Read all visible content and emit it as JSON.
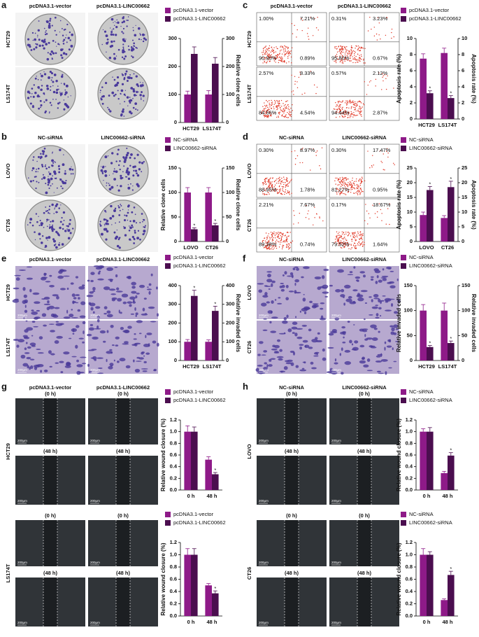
{
  "panels": [
    {
      "letter": "a",
      "columns": [
        "pcDNA3.1-vector",
        "pcDNA3.1-LINC00662"
      ],
      "rows": [
        "HCT29",
        "LS174T"
      ]
    },
    {
      "letter": "b",
      "columns": [
        "NC-siRNA",
        "LINC00662-siRNA"
      ],
      "rows": [
        "LOVO",
        "CT26"
      ]
    },
    {
      "letter": "c",
      "columns": [
        "pcDNA3.1-vector",
        "pcDNA3.1-LINC00662"
      ],
      "rows": [
        "HCT29",
        "LS174T"
      ],
      "quadrants": [
        [
          "1.00%",
          "7.21%",
          "90.90%",
          "0.89%"
        ],
        [
          "0.31%",
          "3.23%",
          "95.80%",
          "0.67%"
        ],
        [
          "2.57%",
          "8.33%",
          "84.56%",
          "4.54%"
        ],
        [
          "0.57%",
          "2.12%",
          "94.44%",
          "2.87%"
        ]
      ]
    },
    {
      "letter": "d",
      "columns": [
        "NC-siRNA",
        "LINC00662-siRNA"
      ],
      "rows": [
        "LOVO",
        "CT26"
      ],
      "quadrants": [
        [
          "0.30%",
          "8.97%",
          "88.95%",
          "1.78%"
        ],
        [
          "0.30%",
          "17.47%",
          "81.27%",
          "0.95%"
        ],
        [
          "2.21%",
          "7.67%",
          "89.38%",
          "0.74%"
        ],
        [
          "0.17%",
          "18.67%",
          "79.52%",
          "1.64%"
        ]
      ]
    },
    {
      "letter": "e",
      "columns": [
        "pcDNA3.1-vector",
        "pcDNA3.1-LINC00662"
      ],
      "rows": [
        "HCT29",
        "LS174T"
      ],
      "scale_bar": "200μm"
    },
    {
      "letter": "f",
      "columns": [
        "NC-siRNA",
        "LINC00662-siRNA"
      ],
      "rows": [
        "LOVO",
        "CT26"
      ],
      "scale_bar": "200μm"
    },
    {
      "letter": "g",
      "columns": [
        "pcDNA3.1-vector",
        "pcDNA3.1-LINC00662"
      ],
      "rows": [
        "HCT29",
        "LS174T"
      ],
      "times": [
        "(0 h)",
        "(48 h)"
      ],
      "scale_bar": "200μm"
    },
    {
      "letter": "h",
      "columns": [
        "NC-siRNA",
        "LINC00662-siRNA"
      ],
      "rows": [
        "LOVO",
        "CT26"
      ],
      "times": [
        "(0 h)",
        "(48 h)"
      ],
      "scale_bar": "200μm"
    }
  ],
  "chart_data": [
    {
      "type": "bar",
      "categories": [
        "HCT29",
        "LS174T"
      ],
      "y2label": "Relative clone cells",
      "ylim": [
        0,
        300
      ],
      "yticks": [
        0,
        100,
        200,
        300
      ],
      "y2lim": [
        0,
        300
      ],
      "y2ticks": [
        0,
        100,
        200,
        300
      ],
      "series": [
        {
          "name": "pcDNA3.1-vector",
          "color": "#8e1a88",
          "values": [
            100,
            100
          ],
          "errors": [
            12,
            14
          ]
        },
        {
          "name": "pcDNA3.1-LINC00662",
          "color": "#4b0e4f",
          "values": [
            245,
            210
          ],
          "errors": [
            25,
            22
          ]
        }
      ]
    },
    {
      "type": "bar",
      "categories": [
        "LOVO",
        "CT26"
      ],
      "ylabel": "Relative clone cells",
      "y2label": "Relative clone cells",
      "ylim": [
        0,
        150
      ],
      "yticks": [
        0,
        50,
        100,
        150
      ],
      "y2lim": [
        0,
        150
      ],
      "y2ticks": [
        0,
        50,
        100,
        150
      ],
      "series": [
        {
          "name": "NC-siRNA",
          "color": "#8e1a88",
          "values": [
            100,
            100
          ],
          "errors": [
            10,
            10
          ]
        },
        {
          "name": "LINC00662-siRNA",
          "color": "#4b0e4f",
          "values": [
            25,
            33
          ],
          "errors": [
            3,
            4
          ],
          "significance": [
            "*",
            "*"
          ]
        }
      ]
    },
    {
      "type": "bar",
      "categories": [
        "HCT29",
        "LS174T"
      ],
      "ylabel": "Apoptosis rate (%)",
      "y2label": "Apoptosis rate (%)",
      "ylim": [
        0,
        10
      ],
      "yticks": [
        0,
        2,
        4,
        6,
        8,
        10
      ],
      "y2lim": [
        0,
        10
      ],
      "y2ticks": [
        0,
        2,
        4,
        6,
        8,
        10
      ],
      "series": [
        {
          "name": "pcDNA3.1-vector",
          "color": "#8e1a88",
          "values": [
            7.5,
            8.2
          ],
          "errors": [
            0.6,
            0.6
          ]
        },
        {
          "name": "pcDNA3.1-LINC00662",
          "color": "#4b0e4f",
          "values": [
            3.2,
            2.6
          ],
          "errors": [
            0.3,
            0.3
          ],
          "significance": [
            "*",
            "*"
          ]
        }
      ]
    },
    {
      "type": "bar",
      "categories": [
        "LOVO",
        "CT26"
      ],
      "ylabel": "Apoptosis rate (%)",
      "y2label": "Apoptosis rate (%)",
      "ylim": [
        0,
        25
      ],
      "yticks": [
        0,
        5,
        10,
        15,
        20,
        25
      ],
      "y2lim": [
        0,
        25
      ],
      "y2ticks": [
        0,
        5,
        10,
        15,
        20,
        25
      ],
      "series": [
        {
          "name": "NC-siRNA",
          "color": "#8e1a88",
          "values": [
            9,
            8
          ],
          "errors": [
            1,
            0.8
          ]
        },
        {
          "name": "LINC00662-siRNA",
          "color": "#4b0e4f",
          "values": [
            17.5,
            18.5
          ],
          "errors": [
            1.2,
            2
          ],
          "significance": [
            "*",
            "*"
          ]
        }
      ]
    },
    {
      "type": "bar",
      "categories": [
        "HCT29",
        "LS174T"
      ],
      "y2label": "Relative invaded cells",
      "ylim": [
        0,
        400
      ],
      "yticks": [
        0,
        100,
        200,
        300,
        400
      ],
      "y2lim": [
        0,
        400
      ],
      "y2ticks": [
        0,
        100,
        200,
        300,
        400
      ],
      "series": [
        {
          "name": "pcDNA3.1-vector",
          "color": "#8e1a88",
          "values": [
            100,
            100
          ],
          "errors": [
            12,
            10
          ]
        },
        {
          "name": "pcDNA3.1-LINC00662",
          "color": "#4b0e4f",
          "values": [
            345,
            265
          ],
          "errors": [
            30,
            25
          ],
          "significance": [
            "*",
            "*"
          ]
        }
      ]
    },
    {
      "type": "bar",
      "categories": [
        "HCT29",
        "LS174T"
      ],
      "ylabel": "Relative invaded cells",
      "y2label": "Relative invaded cells",
      "ylim": [
        0,
        150
      ],
      "yticks": [
        0,
        50,
        100,
        150
      ],
      "y2lim": [
        0,
        150
      ],
      "y2ticks": [
        0,
        50,
        100,
        150
      ],
      "series": [
        {
          "name": "NC-siRNA",
          "color": "#8e1a88",
          "values": [
            100,
            100
          ],
          "errors": [
            12,
            15
          ]
        },
        {
          "name": "LINC00662-siRNA",
          "color": "#4b0e4f",
          "values": [
            27,
            35
          ],
          "errors": [
            3,
            4
          ],
          "significance": [
            "*",
            "*"
          ]
        }
      ]
    },
    {
      "type": "bar",
      "categories": [
        "0 h",
        "48 h"
      ],
      "ylabel": "Relative wound closure (%)",
      "ylim": [
        0,
        1.2
      ],
      "yticks": [
        {
          "value": 0,
          "label": "0.0"
        },
        {
          "value": 0.2,
          "label": "0.2"
        },
        {
          "value": 0.4,
          "label": "0.4"
        },
        {
          "value": 0.6,
          "label": "0.6"
        },
        {
          "value": 0.8,
          "label": "0.8"
        },
        {
          "value": 1,
          "label": "1.0"
        },
        {
          "value": 1.2,
          "label": "1.2"
        }
      ],
      "series": [
        {
          "name": "pcDNA3.1-vector",
          "color": "#8e1a88",
          "values": [
            1.0,
            0.52
          ],
          "errors": [
            0.1,
            0.05
          ]
        },
        {
          "name": "pcDNA3.1-LINC00662",
          "color": "#4b0e4f",
          "values": [
            1.0,
            0.27
          ],
          "errors": [
            0.08,
            0.03
          ],
          "significance": [
            null,
            "*"
          ]
        }
      ]
    },
    {
      "type": "bar",
      "categories": [
        "0 h",
        "48 h"
      ],
      "ylabel": "Relative wound closure (%)",
      "ylim": [
        0,
        1.2
      ],
      "yticks": [
        {
          "value": 0,
          "label": "0.0"
        },
        {
          "value": 0.2,
          "label": "0.2"
        },
        {
          "value": 0.4,
          "label": "0.4"
        },
        {
          "value": 0.6,
          "label": "0.6"
        },
        {
          "value": 0.8,
          "label": "0.8"
        },
        {
          "value": 1,
          "label": "1.0"
        },
        {
          "value": 1.2,
          "label": "1.2"
        }
      ],
      "series": [
        {
          "name": "pcDNA3.1-vector",
          "color": "#8e1a88",
          "values": [
            1.0,
            0.5
          ],
          "errors": [
            0.1,
            0.03
          ]
        },
        {
          "name": "pcDNA3.1-LINC00662",
          "color": "#4b0e4f",
          "values": [
            1.0,
            0.37
          ],
          "errors": [
            0.1,
            0.04
          ],
          "significance": [
            null,
            "*"
          ]
        }
      ]
    },
    {
      "type": "bar",
      "categories": [
        "0 h",
        "48 h"
      ],
      "ylabel": "Relative wound closure (%)",
      "ylim": [
        0,
        1.2
      ],
      "yticks": [
        {
          "value": 0,
          "label": "0.0"
        },
        {
          "value": 0.2,
          "label": "0.2"
        },
        {
          "value": 0.4,
          "label": "0.4"
        },
        {
          "value": 0.6,
          "label": "0.6"
        },
        {
          "value": 0.8,
          "label": "0.8"
        },
        {
          "value": 1,
          "label": "1.0"
        },
        {
          "value": 1.2,
          "label": "1.2"
        }
      ],
      "series": [
        {
          "name": "NC-siRNA",
          "color": "#8e1a88",
          "values": [
            1.0,
            0.29
          ],
          "errors": [
            0.05,
            0.03
          ]
        },
        {
          "name": "LINC00662-siRNA",
          "color": "#4b0e4f",
          "values": [
            1.0,
            0.59
          ],
          "errors": [
            0.07,
            0.05
          ],
          "significance": [
            null,
            "*"
          ]
        }
      ]
    },
    {
      "type": "bar",
      "categories": [
        "0 h",
        "48 h"
      ],
      "ylabel": "Relative wound closure (%)",
      "ylim": [
        0,
        1.2
      ],
      "yticks": [
        {
          "value": 0,
          "label": "0.0"
        },
        {
          "value": 0.2,
          "label": "0.2"
        },
        {
          "value": 0.4,
          "label": "0.4"
        },
        {
          "value": 0.6,
          "label": "0.6"
        },
        {
          "value": 0.8,
          "label": "0.8"
        },
        {
          "value": 1,
          "label": "1.0"
        },
        {
          "value": 1.2,
          "label": "1.2"
        }
      ],
      "series": [
        {
          "name": "NC-siRNA",
          "color": "#8e1a88",
          "values": [
            1.0,
            0.26
          ],
          "errors": [
            0.1,
            0.02
          ]
        },
        {
          "name": "LINC00662-siRNA",
          "color": "#4b0e4f",
          "values": [
            1.0,
            0.67
          ],
          "errors": [
            0.05,
            0.06
          ],
          "significance": [
            null,
            "*"
          ]
        }
      ]
    }
  ]
}
